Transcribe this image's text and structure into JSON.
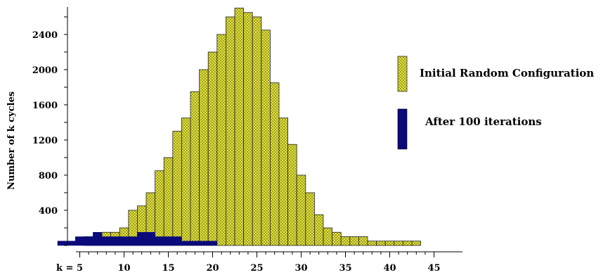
{
  "chart_data": {
    "type": "bar",
    "ylabel": "Number of k cycles",
    "x_prefix": "k =",
    "xlim": [
      2,
      46
    ],
    "ylim": [
      0,
      2700
    ],
    "xticks": [
      5,
      10,
      15,
      20,
      25,
      30,
      35,
      40,
      45
    ],
    "yticks": [
      400,
      800,
      1200,
      1600,
      2000,
      2400
    ],
    "grid": false,
    "legend_position": "right",
    "colors": {
      "initial_fill": "#ecec4a",
      "initial_hatch": "#8a8a10",
      "after_fill": "#0a0a7a"
    },
    "series": [
      {
        "name": "Initial Random Configuration",
        "x": [
          3,
          4,
          5,
          6,
          7,
          8,
          9,
          10,
          11,
          12,
          13,
          14,
          15,
          16,
          17,
          18,
          19,
          20,
          21,
          22,
          23,
          24,
          25,
          26,
          27,
          28,
          29,
          30,
          31,
          32,
          33,
          34,
          35,
          36,
          37,
          38,
          39,
          40,
          41,
          42,
          43
        ],
        "values": [
          0,
          0,
          0,
          100,
          100,
          150,
          150,
          200,
          400,
          450,
          600,
          850,
          1000,
          1300,
          1450,
          1750,
          2000,
          2200,
          2400,
          2600,
          2700,
          2650,
          2600,
          2450,
          1850,
          1450,
          1150,
          800,
          600,
          350,
          200,
          150,
          100,
          100,
          100,
          50,
          50,
          50,
          50,
          50,
          50
        ]
      },
      {
        "name": "After 100 iterations",
        "x": [
          3,
          4,
          5,
          6,
          7,
          8,
          9,
          10,
          11,
          12,
          13,
          14,
          15,
          16,
          17,
          18,
          19,
          20
        ],
        "values": [
          50,
          50,
          100,
          100,
          150,
          100,
          100,
          100,
          100,
          150,
          150,
          100,
          100,
          100,
          50,
          50,
          50,
          50
        ]
      }
    ]
  }
}
